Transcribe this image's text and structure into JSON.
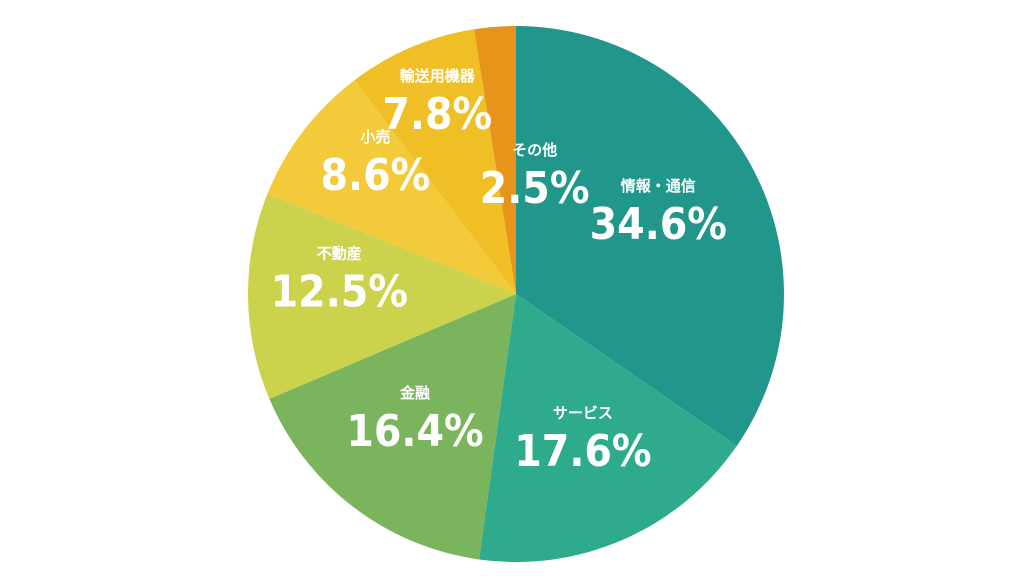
{
  "chart_data": {
    "type": "pie",
    "start": "top",
    "direction": "clockwise",
    "slices": [
      {
        "label": "情報・通信",
        "value_text": "34.6%",
        "value": 34.6,
        "color": "#21978b"
      },
      {
        "label": "サービス",
        "value_text": "17.6%",
        "value": 17.6,
        "color": "#2eab8c"
      },
      {
        "label": "金融",
        "value_text": "16.4%",
        "value": 16.4,
        "color": "#7ab45c"
      },
      {
        "label": "不動産",
        "value_text": "12.5%",
        "value": 12.5,
        "color": "#cdd24d"
      },
      {
        "label": "小売",
        "value_text": "8.6%",
        "value": 8.6,
        "color": "#f3cb3a"
      },
      {
        "label": "輸送用機器",
        "value_text": "7.8%",
        "value": 7.8,
        "color": "#efbf25"
      },
      {
        "label": "その他",
        "value_text": "2.5%",
        "value": 2.5,
        "color": "#e8931a"
      }
    ]
  }
}
